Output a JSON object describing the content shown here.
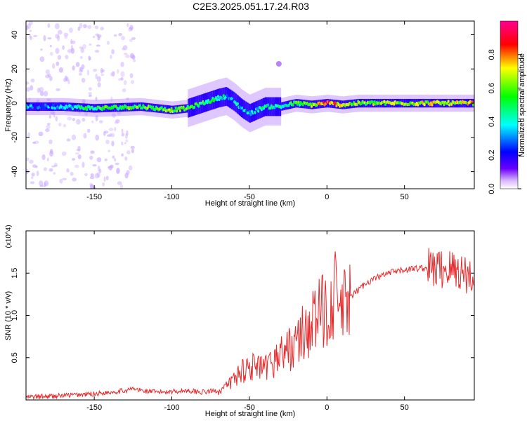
{
  "figure": {
    "title": "C2E3.2025.051.17.24.R03"
  },
  "chart_data": [
    {
      "type": "heatmap",
      "title": "C2E3.2025.051.17.24.R03",
      "xlabel": "Height of straight line (km)",
      "ylabel": "Frequency (Hz)",
      "xlim": [
        -194,
        95
      ],
      "ylim": [
        -50,
        48
      ],
      "x_ticks": [
        -150,
        -100,
        -50,
        0,
        50
      ],
      "y_ticks": [
        -40,
        -20,
        0,
        20,
        40
      ],
      "colorbar": {
        "label": "Normalized spectral amplitude",
        "range": [
          0,
          1
        ],
        "ticks": [
          0.0,
          0.2,
          0.4,
          0.6,
          0.8
        ],
        "tick_labels": [
          "0.0",
          "0.2",
          "0.4",
          "0.6",
          "0.8"
        ],
        "colors": [
          "#ffffff",
          "#5500ff",
          "#0000ff",
          "#00ffff",
          "#00ff00",
          "#ffff00",
          "#ff0000",
          "#ff00aa"
        ]
      },
      "ridge_x": [
        -194,
        -170,
        -150,
        -120,
        -100,
        -90,
        -80,
        -70,
        -65,
        -60,
        -55,
        -50,
        -45,
        -40,
        -30,
        -20,
        -10,
        0,
        10,
        20,
        40,
        60,
        80,
        95
      ],
      "ridge_freq": [
        -2,
        -2,
        -3,
        -2,
        -4,
        -3,
        0,
        3,
        4,
        1,
        -3,
        -6,
        -4,
        -2,
        -2,
        0,
        -1,
        0,
        -1,
        0,
        0,
        0,
        0,
        0
      ],
      "ridge_amplitude": [
        0.25,
        0.3,
        0.5,
        0.55,
        0.6,
        0.55,
        0.5,
        0.45,
        0.4,
        0.3,
        0.35,
        0.35,
        0.4,
        0.45,
        0.45,
        0.5,
        0.6,
        0.85,
        0.7,
        0.6,
        0.65,
        0.65,
        0.7,
        0.7
      ],
      "grid": false
    },
    {
      "type": "line",
      "xlabel": "Height of straight line (km)",
      "ylabel": "SNR (10 * v/v)",
      "y_multiplier": "(x10^4)",
      "xlim": [
        -194,
        95
      ],
      "ylim": [
        0,
        2.0
      ],
      "x_ticks": [
        -150,
        -100,
        -50,
        0,
        50
      ],
      "y_ticks": [
        0.5,
        1.0,
        1.5
      ],
      "y_tick_labels": [
        "0.5",
        "1.0",
        "1.5"
      ],
      "color": "#e8292b",
      "series": [
        {
          "x": [
            -194,
            -180,
            -170,
            -160,
            -150,
            -140,
            -130,
            -125,
            -120,
            -110,
            -100,
            -90,
            -80,
            -70,
            -65,
            -60,
            -55,
            -50,
            -45,
            -40,
            -35,
            -30,
            -25,
            -20,
            -15,
            -10,
            -5,
            0,
            5,
            10,
            15,
            20,
            25,
            30,
            40,
            50,
            60,
            70,
            80,
            90,
            95
          ],
          "y": [
            0.02,
            0.03,
            0.04,
            0.05,
            0.06,
            0.08,
            0.1,
            0.12,
            0.1,
            0.08,
            0.09,
            0.1,
            0.08,
            0.1,
            0.15,
            0.25,
            0.35,
            0.4,
            0.38,
            0.35,
            0.45,
            0.55,
            0.6,
            0.65,
            0.8,
            0.9,
            1.0,
            1.1,
            1.25,
            1.05,
            1.2,
            1.3,
            1.38,
            1.43,
            1.5,
            1.54,
            1.56,
            1.55,
            1.55,
            1.5,
            1.4
          ]
        }
      ],
      "grid": false
    }
  ]
}
